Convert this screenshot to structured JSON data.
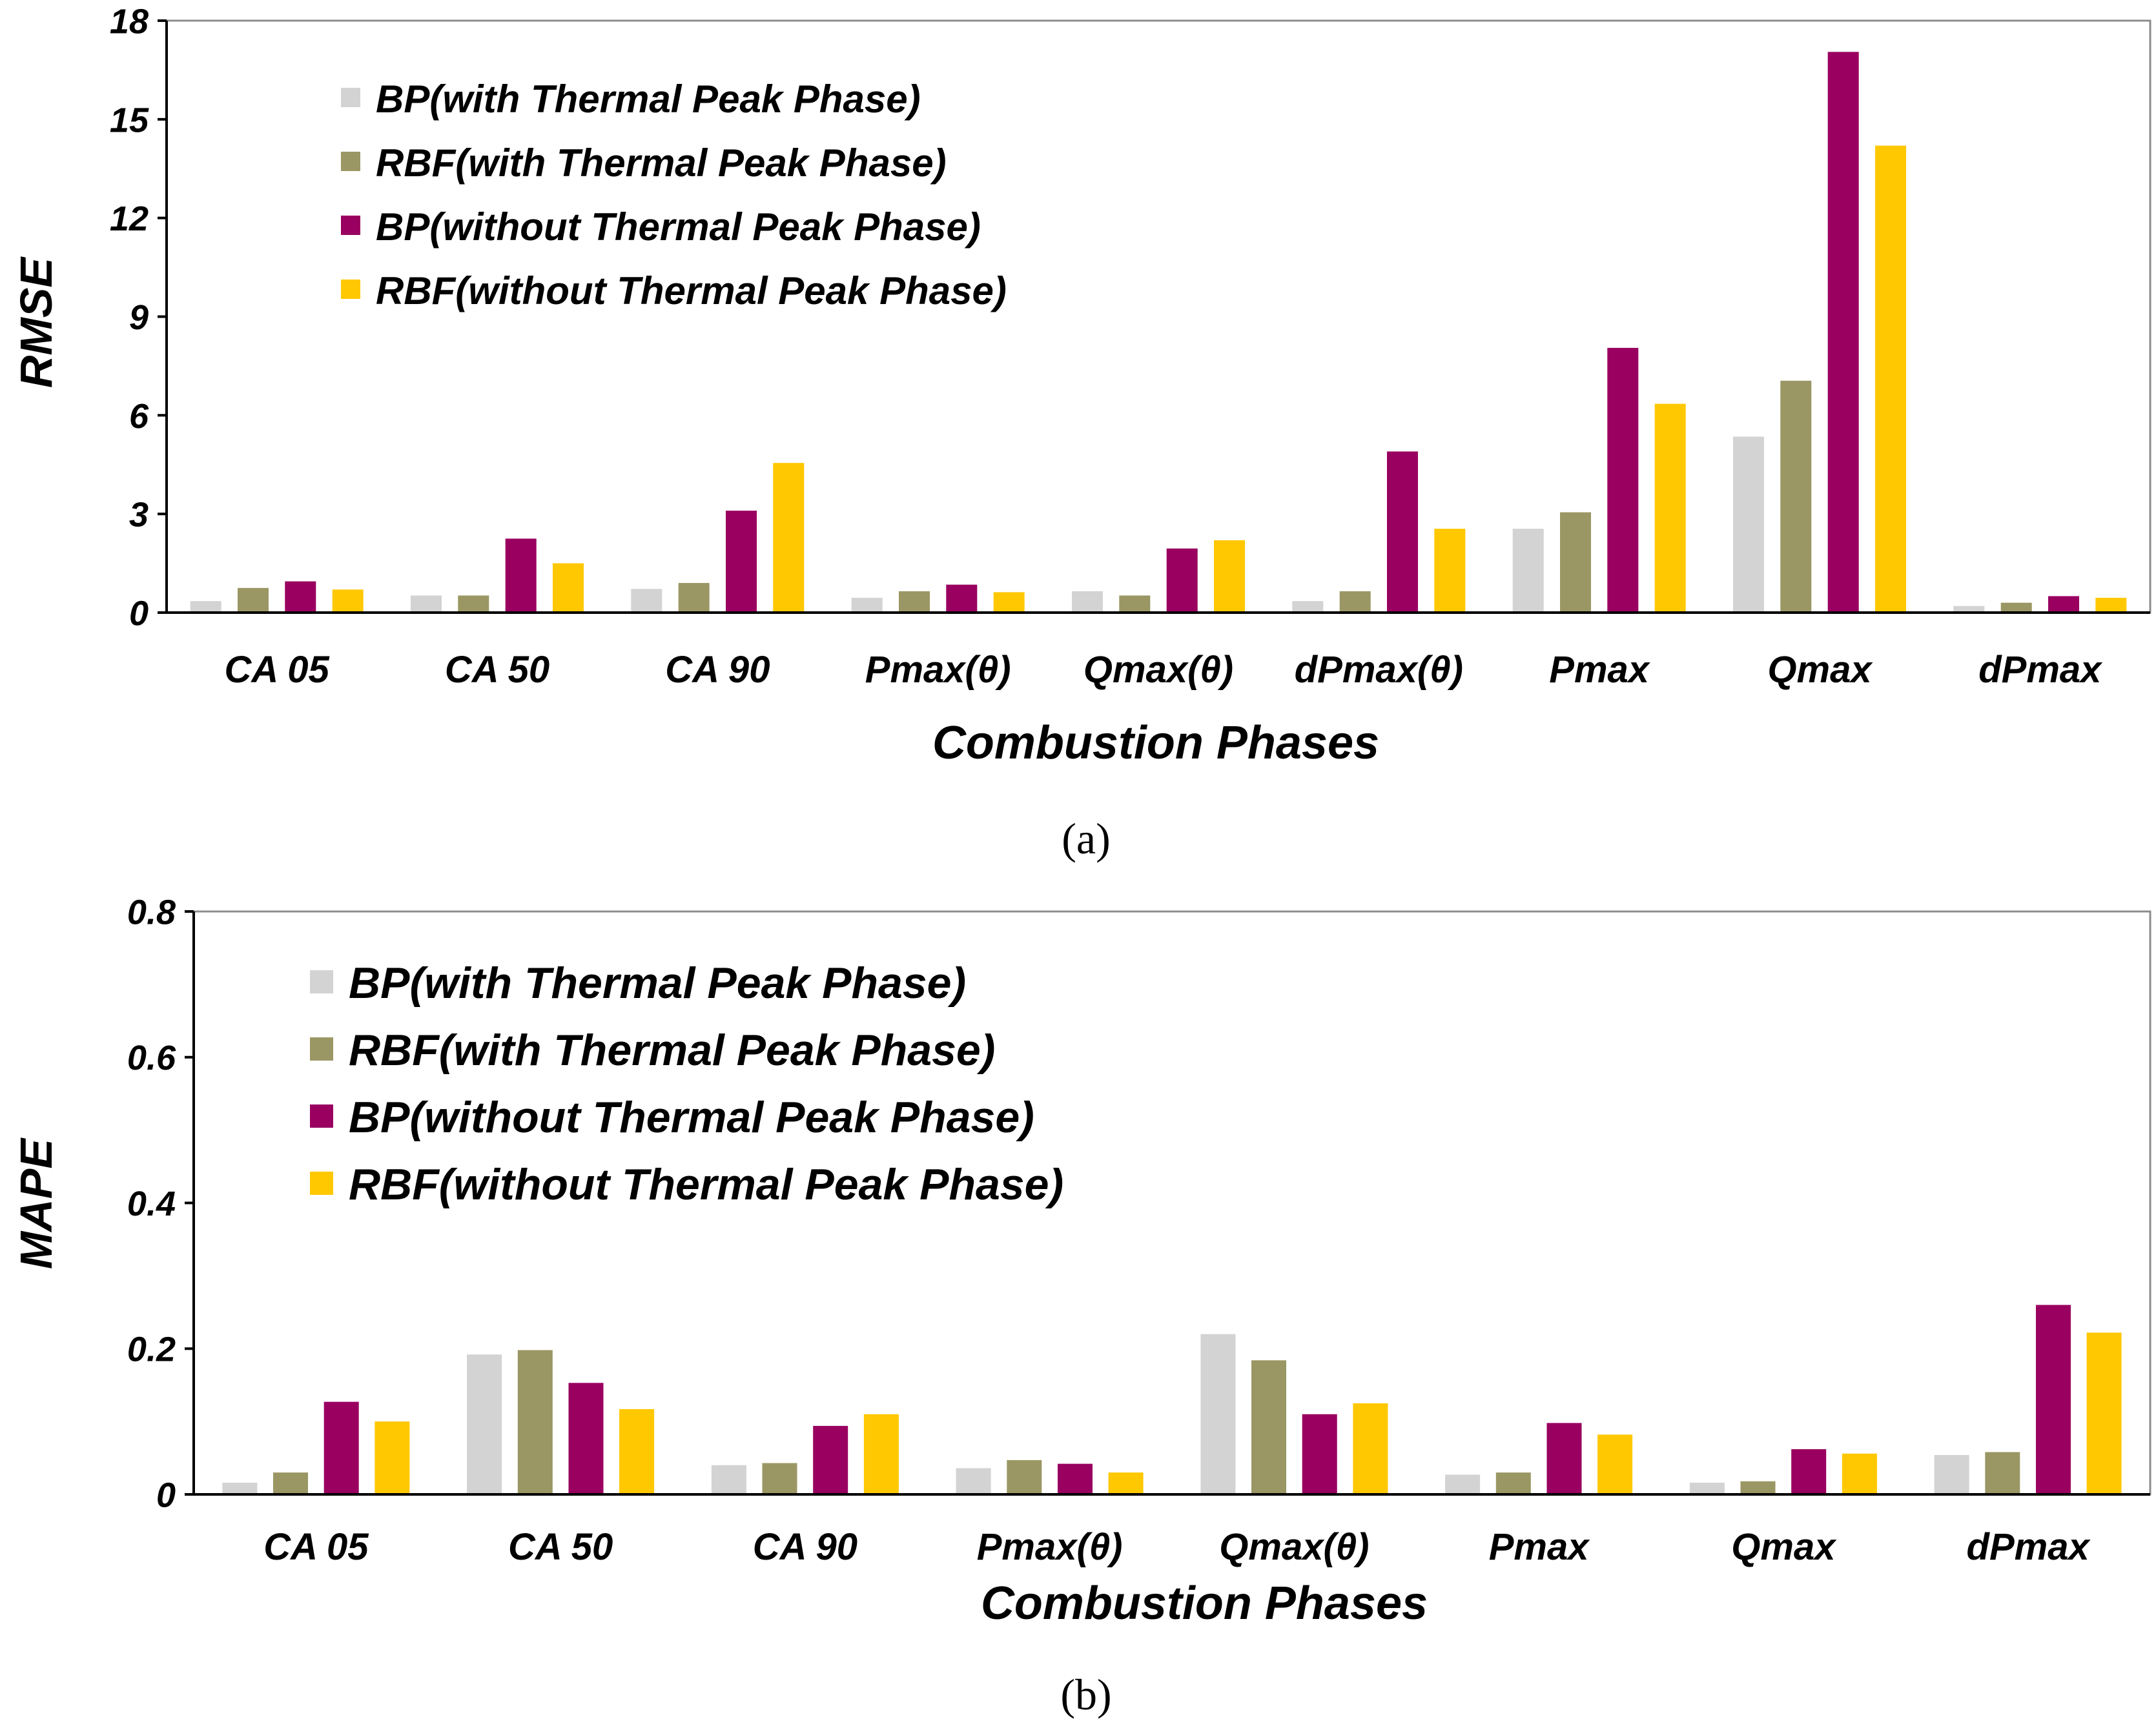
{
  "colors": {
    "series": [
      "#d3d3d3",
      "#9b9764",
      "#990060",
      "#ffc800"
    ],
    "axis": "#000000",
    "frame": "#8c8c8c"
  },
  "chart_data": [
    {
      "type": "bar",
      "caption": "(a)",
      "xlabel": "Combustion Phases",
      "ylabel": "RMSE",
      "ylim": [
        0,
        18
      ],
      "yticks": [
        "0",
        "3",
        "6",
        "9",
        "12",
        "15",
        "18"
      ],
      "grid": false,
      "legend_position": "top-left",
      "categories": [
        "CA 05",
        "CA 50",
        "CA 90",
        "Pmax(θ)",
        "Qmax(θ)",
        "dPmax(θ)",
        "Pmax",
        "Qmax",
        "dPmax"
      ],
      "series": [
        {
          "name": "BP(with Thermal Peak Phase)",
          "values": [
            0.35,
            0.52,
            0.72,
            0.45,
            0.65,
            0.35,
            2.55,
            5.35,
            0.2
          ]
        },
        {
          "name": "RBF(with Thermal Peak Phase)",
          "values": [
            0.75,
            0.52,
            0.9,
            0.65,
            0.52,
            0.65,
            3.05,
            7.05,
            0.3
          ]
        },
        {
          "name": "BP(without Thermal Peak Phase)",
          "values": [
            0.95,
            2.25,
            3.1,
            0.85,
            1.95,
            4.9,
            8.05,
            17.05,
            0.5
          ]
        },
        {
          "name": "RBF(without Thermal Peak Phase)",
          "values": [
            0.7,
            1.5,
            4.55,
            0.62,
            2.2,
            2.55,
            6.35,
            14.2,
            0.45
          ]
        }
      ]
    },
    {
      "type": "bar",
      "caption": "(b)",
      "xlabel": "Combustion Phases",
      "ylabel": "MAPE",
      "ylim": [
        0,
        0.8
      ],
      "yticks": [
        "0",
        "0.2",
        "0.4",
        "0.6",
        "0.8"
      ],
      "grid": false,
      "legend_position": "top-left",
      "categories": [
        "CA 05",
        "CA 50",
        "CA 90",
        "Pmax(θ)",
        "Qmax(θ)",
        "Pmax",
        "Qmax",
        "dPmax"
      ],
      "series": [
        {
          "name": "BP(with Thermal Peak Phase)",
          "values": [
            0.016,
            0.192,
            0.04,
            0.036,
            0.22,
            0.027,
            0.016,
            0.054
          ]
        },
        {
          "name": "RBF(with Thermal Peak Phase)",
          "values": [
            0.03,
            0.198,
            0.043,
            0.047,
            0.184,
            0.03,
            0.018,
            0.058
          ]
        },
        {
          "name": "BP(without Thermal Peak Phase)",
          "values": [
            0.127,
            0.153,
            0.094,
            0.042,
            0.11,
            0.098,
            0.062,
            0.26
          ]
        },
        {
          "name": "RBF(without Thermal Peak Phase)",
          "values": [
            0.1,
            0.117,
            0.11,
            0.03,
            0.125,
            0.082,
            0.056,
            0.222
          ]
        }
      ]
    }
  ]
}
